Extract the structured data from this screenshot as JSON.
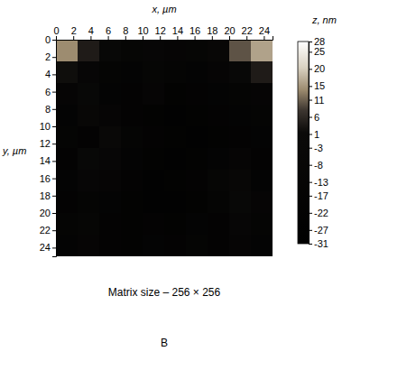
{
  "chart_data": {
    "type": "heatmap",
    "xlabel": "x, µm",
    "ylabel": "y, µm",
    "colorbar_label": "z, nm",
    "subtitle": "Matrix size – 256 × 256",
    "annotations": [
      "B"
    ],
    "x": [
      1.25,
      3.75,
      6.25,
      8.75,
      11.25,
      13.75,
      16.25,
      18.75,
      21.25,
      23.75
    ],
    "y": [
      1.25,
      3.75,
      6.25,
      8.75,
      11.25,
      13.75,
      16.25,
      18.75,
      21.25,
      23.75
    ],
    "cells": [
      [
        14,
        4,
        -6,
        -12,
        -10,
        -14,
        -12,
        -8,
        10,
        16
      ],
      [
        2,
        -10,
        -16,
        -18,
        -12,
        -16,
        -18,
        -14,
        -6,
        4
      ],
      [
        -14,
        -6,
        -18,
        -20,
        -14,
        -22,
        -20,
        -18,
        -16,
        -14
      ],
      [
        -18,
        -8,
        -14,
        -20,
        -22,
        -24,
        -22,
        -20,
        -18,
        -16
      ],
      [
        -16,
        -20,
        -4,
        -16,
        -20,
        -22,
        -24,
        -22,
        -20,
        -18
      ],
      [
        -20,
        -6,
        -10,
        -18,
        -22,
        -24,
        -22,
        -18,
        -14,
        -20
      ],
      [
        -18,
        -10,
        -14,
        -20,
        -24,
        -22,
        -20,
        -12,
        -8,
        -18
      ],
      [
        -20,
        -16,
        -18,
        -22,
        -24,
        -24,
        -22,
        -16,
        -6,
        -14
      ],
      [
        -16,
        -12,
        -20,
        -22,
        -20,
        -22,
        -18,
        -20,
        -10,
        -16
      ],
      [
        -18,
        -14,
        -20,
        -22,
        -18,
        -20,
        -16,
        -20,
        -14,
        -18
      ]
    ],
    "xlim": [
      0,
      25
    ],
    "ylim": [
      0,
      25
    ],
    "xticks": [
      0,
      2,
      4,
      6,
      8,
      10,
      12,
      14,
      16,
      18,
      20,
      22,
      24
    ],
    "yticks": [
      0,
      2,
      4,
      6,
      8,
      10,
      12,
      14,
      16,
      18,
      20,
      22,
      24
    ],
    "zlim": [
      -31,
      28
    ],
    "zticks": [
      28,
      25,
      20,
      15,
      11,
      6,
      1,
      -3,
      -8,
      -13,
      -17,
      -22,
      -27,
      -31
    ]
  }
}
